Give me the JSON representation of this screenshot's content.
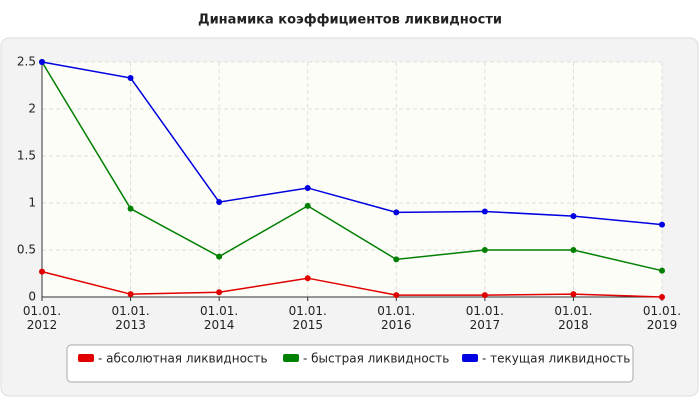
{
  "chart_data": {
    "type": "line",
    "title": "Динамика коэффициентов ликвидности",
    "categories": [
      "01.01. 2012",
      "01.01. 2013",
      "01.01. 2014",
      "01.01. 2015",
      "01.01. 2016",
      "01.01. 2017",
      "01.01. 2018",
      "01.01. 2019"
    ],
    "series": [
      {
        "name": "- абсолютная ликвидность",
        "color": "#e00000",
        "values": [
          0.27,
          0.03,
          0.05,
          0.2,
          0.02,
          0.02,
          0.03,
          0
        ]
      },
      {
        "name": "- быстрая ликвидность",
        "color": "#008000",
        "values": [
          2.5,
          0.94,
          0.43,
          0.97,
          0.4,
          0.5,
          0.5,
          0.28
        ]
      },
      {
        "name": "- текущая ликвидность",
        "color": "#0000e0",
        "values": [
          2.5,
          2.33,
          1.01,
          1.16,
          0.9,
          0.91,
          0.86,
          0.77
        ]
      }
    ],
    "ylim": [
      0,
      2.5
    ],
    "yticks": [
      0,
      0.5,
      1,
      1.5,
      2,
      2.5
    ],
    "grid": true
  }
}
